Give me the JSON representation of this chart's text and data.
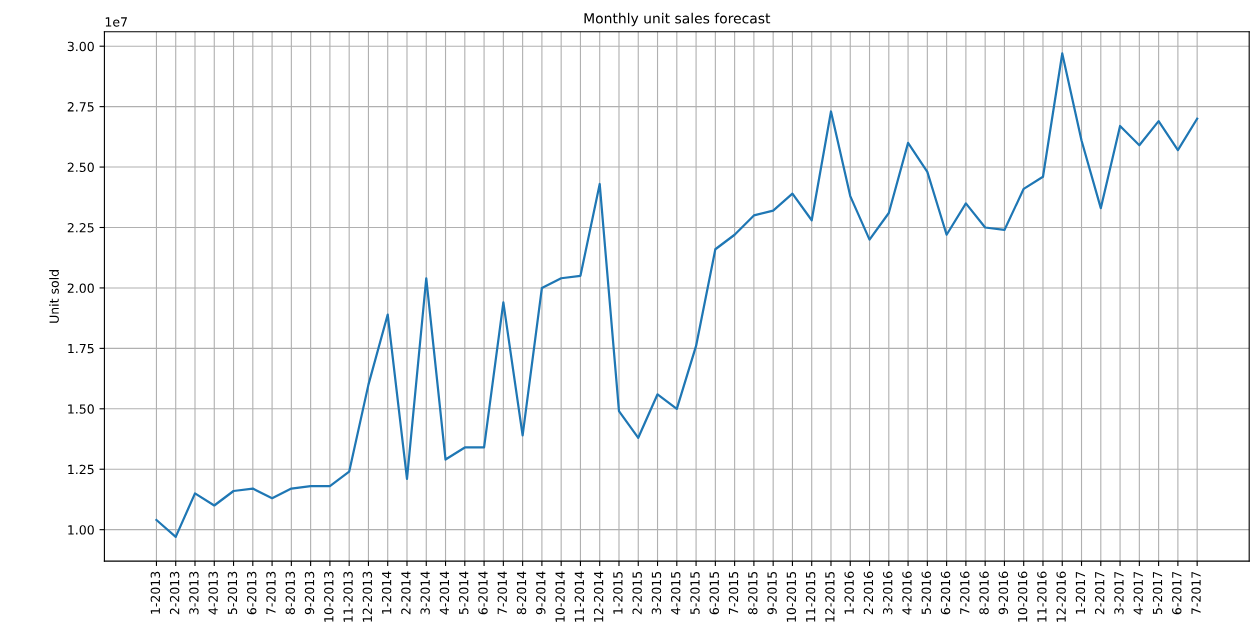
{
  "chart_data": {
    "type": "line",
    "title": "Monthly unit sales forecast",
    "ylabel": "Unit sold",
    "annotations": [
      "1e7"
    ],
    "categories": [
      "1-2013",
      "2-2013",
      "3-2013",
      "4-2013",
      "5-2013",
      "6-2013",
      "7-2013",
      "8-2013",
      "9-2013",
      "10-2013",
      "11-2013",
      "12-2013",
      "1-2014",
      "2-2014",
      "3-2014",
      "4-2014",
      "5-2014",
      "6-2014",
      "7-2014",
      "8-2014",
      "9-2014",
      "10-2014",
      "11-2014",
      "12-2014",
      "1-2015",
      "2-2015",
      "3-2015",
      "4-2015",
      "5-2015",
      "6-2015",
      "7-2015",
      "8-2015",
      "9-2015",
      "10-2015",
      "11-2015",
      "12-2015",
      "1-2016",
      "2-2016",
      "3-2016",
      "4-2016",
      "5-2016",
      "6-2016",
      "7-2016",
      "8-2016",
      "9-2016",
      "10-2016",
      "11-2016",
      "12-2016",
      "1-2017",
      "2-2017",
      "3-2017",
      "4-2017",
      "5-2017",
      "6-2017",
      "7-2017"
    ],
    "series": [
      {
        "color": "#1f77b4",
        "values": [
          1.04,
          0.97,
          1.15,
          1.1,
          1.16,
          1.17,
          1.13,
          1.17,
          1.18,
          1.18,
          1.24,
          1.6,
          1.89,
          1.21,
          2.04,
          1.29,
          1.34,
          1.34,
          1.94,
          1.39,
          2.0,
          2.04,
          2.05,
          2.43,
          1.49,
          1.38,
          1.56,
          1.5,
          1.76,
          2.16,
          2.22,
          2.3,
          2.32,
          2.39,
          2.28,
          2.73,
          2.38,
          2.2,
          2.31,
          2.6,
          2.48,
          2.22,
          2.35,
          2.25,
          2.24,
          2.41,
          2.46,
          2.97,
          2.61,
          2.33,
          2.67,
          2.59,
          2.69,
          2.57,
          2.7
        ]
      }
    ],
    "ylim": [
      0.87,
      3.06
    ],
    "yticks": [
      {
        "value": 1.0,
        "label": "1.00"
      },
      {
        "value": 1.25,
        "label": "1.25"
      },
      {
        "value": 1.5,
        "label": "1.50"
      },
      {
        "value": 1.75,
        "label": "1.75"
      },
      {
        "value": 2.0,
        "label": "2.00"
      },
      {
        "value": 2.25,
        "label": "2.25"
      },
      {
        "value": 2.5,
        "label": "2.50"
      },
      {
        "value": 2.75,
        "label": "2.75"
      },
      {
        "value": 3.0,
        "label": "3.00"
      }
    ],
    "grid": true,
    "marker": "none",
    "line_style": "solid"
  }
}
